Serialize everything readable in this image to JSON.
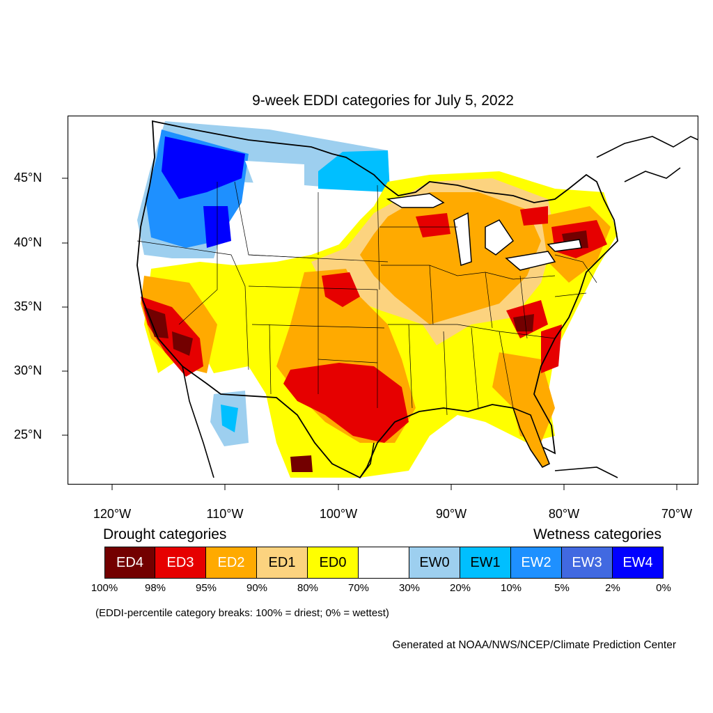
{
  "title": "9-week EDDI categories for July 5, 2022",
  "axes": {
    "lat_labels": [
      "45°N",
      "40°N",
      "35°N",
      "30°N",
      "25°N"
    ],
    "lon_labels": [
      "120°W",
      "110°W",
      "100°W",
      "90°W",
      "80°W",
      "70°W"
    ]
  },
  "legend": {
    "drought_heading": "Drought categories",
    "wetness_heading": "Wetness categories",
    "categories": [
      {
        "label": "ED4",
        "color": "#730000",
        "text_color": "#ffffff"
      },
      {
        "label": "ED3",
        "color": "#e60000",
        "text_color": "#ffffff"
      },
      {
        "label": "ED2",
        "color": "#ffaa00",
        "text_color": "#ffffff"
      },
      {
        "label": "ED1",
        "color": "#fcd37f",
        "text_color": "#000000"
      },
      {
        "label": "ED0",
        "color": "#ffff00",
        "text_color": "#000000"
      },
      {
        "label": "",
        "color": "#ffffff",
        "text_color": "#000000"
      },
      {
        "label": "EW0",
        "color": "#9dcfef",
        "text_color": "#000000"
      },
      {
        "label": "EW1",
        "color": "#00bfff",
        "text_color": "#000000"
      },
      {
        "label": "EW2",
        "color": "#1e90ff",
        "text_color": "#ffffff"
      },
      {
        "label": "EW3",
        "color": "#4169e1",
        "text_color": "#ffffff"
      },
      {
        "label": "EW4",
        "color": "#0000ff",
        "text_color": "#ffffff"
      }
    ],
    "percentiles": [
      "100%",
      "98%",
      "95%",
      "90%",
      "80%",
      "70%",
      "30%",
      "20%",
      "10%",
      "5%",
      "2%",
      "0%"
    ],
    "breaks_note": "(EDDI-percentile category breaks: 100% = driest; 0% = wettest)"
  },
  "credit": "Generated at NOAA/NWS/NCEP/Climate Prediction Center"
}
